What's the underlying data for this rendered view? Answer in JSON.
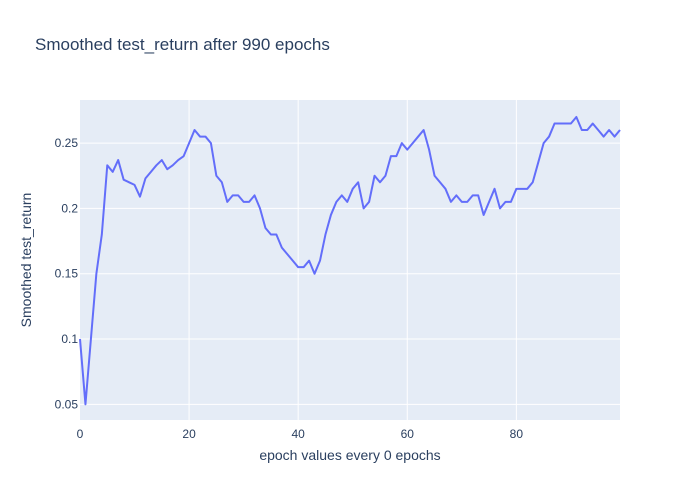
{
  "chart_data": {
    "type": "line",
    "title": "Smoothed test_return after 990 epochs",
    "xlabel": "epoch values every 0 epochs",
    "ylabel": "Smoothed test_return",
    "xlim": [
      0,
      99
    ],
    "ylim": [
      0.038,
      0.283
    ],
    "xticks": [
      0,
      20,
      40,
      60,
      80
    ],
    "xtick_labels": [
      "0",
      "20",
      "40",
      "60",
      "80"
    ],
    "yticks": [
      0.05,
      0.1,
      0.15,
      0.2,
      0.25
    ],
    "ytick_labels": [
      "0.05",
      "0.1",
      "0.15",
      "0.2",
      "0.25"
    ],
    "grid": true,
    "legend": "none",
    "line_color": "#636efa",
    "plot_background": "#e5ecf6",
    "series": [
      {
        "x": [
          0,
          1,
          2,
          3,
          4,
          5,
          6,
          7,
          8,
          9,
          10,
          11,
          12,
          13,
          14,
          15,
          16,
          17,
          18,
          19,
          20,
          21,
          22,
          23,
          24,
          25,
          26,
          27,
          28,
          29,
          30,
          31,
          32,
          33,
          34,
          35,
          36,
          37,
          38,
          39,
          40,
          41,
          42,
          43,
          44,
          45,
          46,
          47,
          48,
          49,
          50,
          51,
          52,
          53,
          54,
          55,
          56,
          57,
          58,
          59,
          60,
          61,
          62,
          63,
          64,
          65,
          66,
          67,
          68,
          69,
          70,
          71,
          72,
          73,
          74,
          75,
          76,
          77,
          78,
          79,
          80,
          81,
          82,
          83,
          84,
          85,
          86,
          87,
          88,
          89,
          90,
          91,
          92,
          93,
          94,
          95,
          96,
          97,
          98,
          99
        ],
        "y": [
          0.1,
          0.05,
          0.1,
          0.15,
          0.18,
          0.233,
          0.228,
          0.237,
          0.222,
          0.22,
          0.218,
          0.209,
          0.223,
          0.228,
          0.233,
          0.237,
          0.23,
          0.233,
          0.237,
          0.24,
          0.25,
          0.26,
          0.255,
          0.255,
          0.25,
          0.225,
          0.22,
          0.205,
          0.21,
          0.21,
          0.205,
          0.205,
          0.21,
          0.2,
          0.185,
          0.18,
          0.18,
          0.17,
          0.165,
          0.16,
          0.155,
          0.155,
          0.16,
          0.15,
          0.16,
          0.18,
          0.195,
          0.205,
          0.21,
          0.205,
          0.215,
          0.22,
          0.2,
          0.205,
          0.225,
          0.22,
          0.225,
          0.24,
          0.24,
          0.25,
          0.245,
          0.25,
          0.255,
          0.26,
          0.245,
          0.225,
          0.22,
          0.215,
          0.205,
          0.21,
          0.205,
          0.205,
          0.21,
          0.21,
          0.195,
          0.205,
          0.215,
          0.2,
          0.205,
          0.205,
          0.215,
          0.215,
          0.215,
          0.22,
          0.235,
          0.25,
          0.255,
          0.265,
          0.265,
          0.265,
          0.265,
          0.27,
          0.26,
          0.26,
          0.265,
          0.26,
          0.255,
          0.26,
          0.255,
          0.26
        ]
      }
    ]
  }
}
